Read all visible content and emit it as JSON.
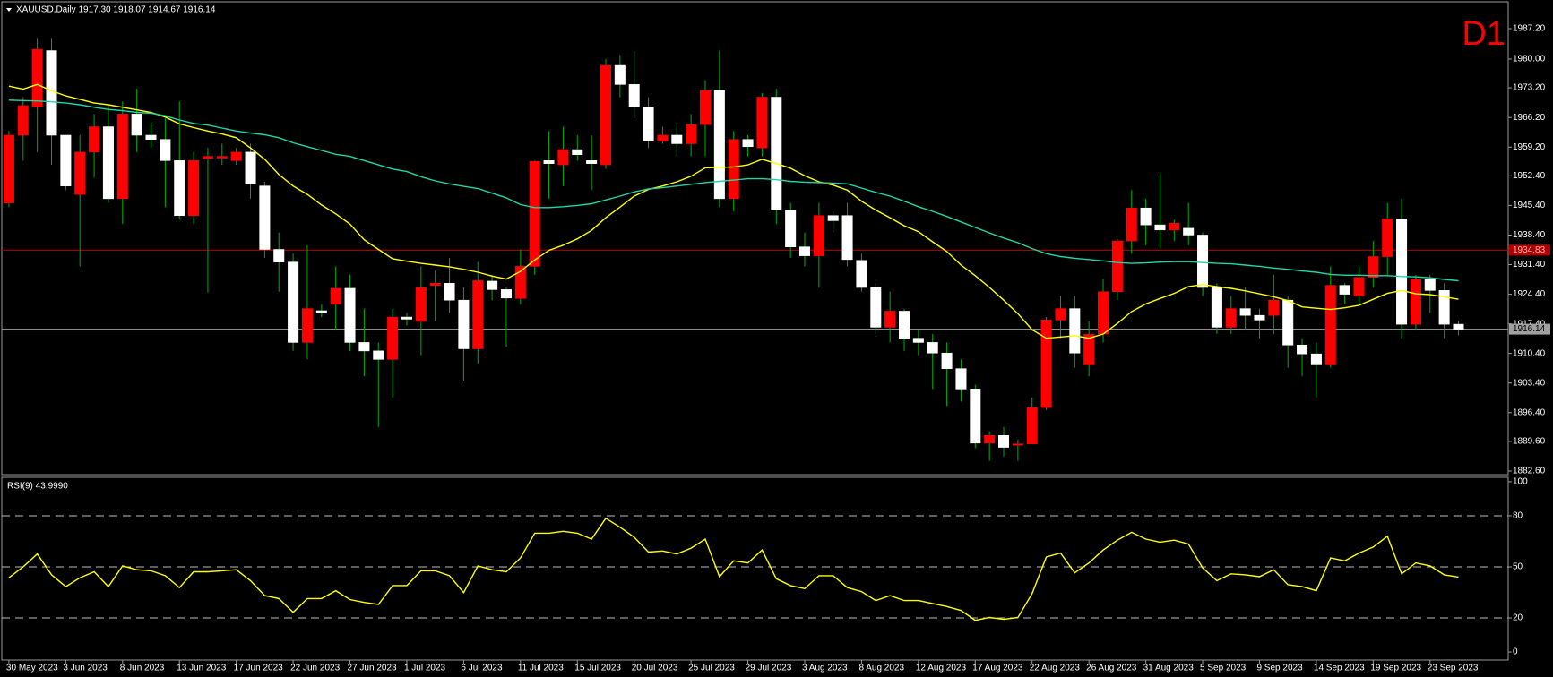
{
  "chart_data": [
    {
      "type": "candlestick",
      "title": "XAUUSD,Daily  1917.30 1918.07 1914.67 1916.14",
      "annotation": "D1",
      "categories": [
        "30 May 2023",
        null,
        null,
        null,
        "3 Jun 2023",
        null,
        null,
        null,
        "8 Jun 2023",
        null,
        null,
        null,
        "13 Jun 2023",
        null,
        null,
        null,
        "17 Jun 2023",
        null,
        null,
        null,
        "22 Jun 2023",
        null,
        null,
        null,
        "27 Jun 2023",
        null,
        null,
        null,
        "1 Jul 2023",
        null,
        null,
        null,
        "6 Jul 2023",
        null,
        null,
        null,
        "11 Jul 2023",
        null,
        null,
        null,
        "15 Jul 2023",
        null,
        null,
        null,
        "20 Jul 2023",
        null,
        null,
        null,
        "25 Jul 2023",
        null,
        null,
        null,
        "29 Jul 2023",
        null,
        null,
        null,
        "3 Aug 2023",
        null,
        null,
        null,
        "8 Aug 2023",
        null,
        null,
        null,
        "12 Aug 2023",
        null,
        null,
        null,
        "17 Aug 2023",
        null,
        null,
        null,
        "22 Aug 2023",
        null,
        null,
        null,
        "26 Aug 2023",
        null,
        null,
        null,
        "31 Aug 2023",
        null,
        null,
        null,
        "5 Sep 2023",
        null,
        null,
        null,
        "9 Sep 2023",
        null,
        null,
        null,
        "14 Sep 2023",
        null,
        null,
        null,
        "19 Sep 2023",
        null,
        null,
        null,
        "23 Sep 2023",
        null,
        null
      ],
      "open": [
        1946,
        1962,
        1968.7,
        1982,
        1962,
        1948,
        1958,
        1964,
        1947,
        1967,
        1962,
        1961,
        1956,
        1943,
        1956.5,
        1956.6,
        1956,
        1958,
        1950,
        1935,
        1932,
        1913,
        1920.5,
        1922,
        1925.8,
        1913,
        1911,
        1909,
        1919,
        1918,
        1926.5,
        1927,
        1923,
        1911.5,
        1927.5,
        1925.5,
        1923.4,
        1931,
        1956,
        1955,
        1958.6,
        1956,
        1955,
        1978.5,
        1974,
        1968.7,
        1960.6,
        1962,
        1960,
        1964.5,
        1972.6,
        1947,
        1961,
        1959,
        1971,
        1944.3,
        1935.6,
        1933.5,
        1943,
        1943,
        1932.4,
        1926,
        1916.6,
        1920.4,
        1914,
        1913,
        1910.5,
        1906.8,
        1902,
        1889.2,
        1891,
        1888.7,
        1889,
        1897.6,
        1918.3,
        1921,
        1907.7,
        1915,
        1925,
        1937,
        1944.8,
        1940.8,
        1939.6,
        1940,
        1938.4,
        1926,
        1916.6,
        1921,
        1919.4,
        1919.4,
        1923,
        1912.4,
        1910.3,
        1907.7,
        1926.5,
        1924,
        1928.4,
        1933.3,
        1942.2,
        1917.3,
        1927.9,
        1925.3,
        1917.3
      ],
      "high": [
        1963,
        1971,
        1985,
        1985,
        1962,
        1962,
        1967,
        1969,
        1970,
        1973,
        1965,
        1966,
        1970,
        1958,
        1959,
        1960,
        1959,
        1960,
        1951,
        1939,
        1934,
        1936,
        1922,
        1931,
        1929,
        1921,
        1913,
        1921,
        1920,
        1931,
        1930,
        1933,
        1926,
        1932,
        1929,
        1926,
        1935,
        1956,
        1963,
        1964,
        1962,
        1962,
        1980,
        1981,
        1982,
        1971,
        1964,
        1965,
        1967,
        1975,
        1982,
        1963,
        1962,
        1972,
        1973,
        1946,
        1939,
        1946,
        1944,
        1946,
        1934,
        1927,
        1925,
        1921,
        1916,
        1915,
        1913,
        1909,
        1903,
        1892,
        1893,
        1890,
        1900,
        1919,
        1924,
        1924,
        1918,
        1928,
        1937.5,
        1949,
        1947,
        1953,
        1942,
        1946,
        1939,
        1927,
        1924,
        1926,
        1921,
        1929,
        1924,
        1914,
        1913,
        1931,
        1927,
        1931,
        1937,
        1946,
        1947,
        1929,
        1929,
        1927,
        1918.07
      ],
      "low": [
        1945,
        1956,
        1958,
        1955,
        1949,
        1931,
        1952,
        1946,
        1941,
        1958,
        1959,
        1945,
        1942,
        1941,
        1924.8,
        1955,
        1955,
        1947,
        1933,
        1925,
        1911,
        1909,
        1919,
        1916,
        1911,
        1905,
        1893,
        1900,
        1917,
        1910,
        1918,
        1920,
        1904,
        1908,
        1923,
        1912,
        1922,
        1929,
        1947,
        1950,
        1956,
        1949,
        1954,
        1971,
        1966,
        1959,
        1960,
        1957,
        1957,
        1957,
        1945,
        1944,
        1957,
        1957,
        1941,
        1933,
        1931,
        1926,
        1939,
        1931,
        1925,
        1915,
        1913,
        1911,
        1910,
        1902,
        1898,
        1899,
        1888,
        1885,
        1886,
        1885,
        1889,
        1897,
        1914,
        1907,
        1905,
        1913,
        1923,
        1934,
        1936,
        1935,
        1937,
        1936,
        1924,
        1915,
        1915,
        1916,
        1914,
        1915,
        1907,
        1905,
        1900,
        1907,
        1922,
        1922,
        1926,
        1929,
        1914,
        1916,
        1920,
        1914,
        1914.67
      ],
      "close": [
        1962,
        1969,
        1982.3,
        1962,
        1950,
        1958,
        1964,
        1947,
        1967,
        1962,
        1961,
        1956,
        1943,
        1956,
        1957,
        1957,
        1958,
        1950.6,
        1935,
        1932,
        1913,
        1921,
        1920,
        1925.8,
        1913,
        1911,
        1909,
        1919,
        1918.5,
        1926,
        1927,
        1923,
        1911.5,
        1927.6,
        1925.5,
        1923.5,
        1931,
        1955.8,
        1955.3,
        1958.6,
        1957.4,
        1955.3,
        1978.5,
        1974,
        1968.7,
        1960.7,
        1962,
        1960,
        1964.5,
        1972.6,
        1947,
        1961,
        1959.3,
        1971,
        1944.3,
        1935.6,
        1933.5,
        1943,
        1941.8,
        1932.6,
        1926,
        1916.6,
        1920.4,
        1914,
        1913,
        1910.5,
        1906.8,
        1902,
        1889.2,
        1891,
        1888.2,
        1889,
        1897.6,
        1918.3,
        1921,
        1910.5,
        1914.9,
        1925,
        1937,
        1944.8,
        1940.8,
        1939.6,
        1941.2,
        1938.4,
        1926,
        1916.6,
        1921,
        1919.4,
        1918.3,
        1923,
        1912.4,
        1910.3,
        1907.7,
        1926.5,
        1924.4,
        1928.4,
        1933.3,
        1942.2,
        1917.3,
        1927.9,
        1925.3,
        1917.3,
        1916.14
      ],
      "up_color": "#ff0000",
      "down_color": "#ffffff",
      "wick_color": "#00b000",
      "overlays": [
        {
          "color": "#ffff00",
          "values": [
            1973.6,
            1972.9,
            1974,
            1972.5,
            1971.3,
            1970.5,
            1969.6,
            1969.2,
            1968.6,
            1968,
            1967.4,
            1966.3,
            1964.7,
            1963.8,
            1963,
            1962.3,
            1961.4,
            1959,
            1956.3,
            1952.7,
            1950,
            1948,
            1945.5,
            1943.4,
            1941,
            1937.3,
            1935,
            1932.8,
            1932.2,
            1931.7,
            1931.3,
            1930.9,
            1930.3,
            1929.6,
            1928.7,
            1928,
            1929.8,
            1932.5,
            1934.8,
            1936,
            1937.5,
            1939.5,
            1942.5,
            1945,
            1947.6,
            1949.2,
            1950,
            1951,
            1952.3,
            1954.3,
            1954.4,
            1954.5,
            1955,
            1956.3,
            1955.3,
            1954.2,
            1952.4,
            1951,
            1950.2,
            1949,
            1946.4,
            1944.3,
            1942.5,
            1940.6,
            1939.2,
            1936.8,
            1934.5,
            1931.3,
            1928.8,
            1926,
            1923,
            1919.8,
            1916,
            1914,
            1914.3,
            1914.6,
            1914,
            1915,
            1917.5,
            1920.3,
            1922.1,
            1923.4,
            1924.6,
            1926.2,
            1926.7,
            1926.2,
            1925.8,
            1925.2,
            1924.5,
            1923.8,
            1922.9,
            1921.4,
            1921.1,
            1920.8,
            1921.2,
            1921.8,
            1923.2,
            1924.6,
            1925.3,
            1924.5,
            1924.3,
            1923.8,
            1923.2
          ]
        },
        {
          "color": "#1fd6a8",
          "values": [
            1970.3,
            1970.2,
            1970.1,
            1969.9,
            1969.6,
            1969.2,
            1968.6,
            1968.1,
            1967.8,
            1967.4,
            1967.2,
            1966.6,
            1965.6,
            1964.8,
            1964.4,
            1963.7,
            1963,
            1962.5,
            1962.1,
            1961.4,
            1960.2,
            1959.3,
            1958.4,
            1957.5,
            1957,
            1956,
            1955,
            1954,
            1953.4,
            1952.2,
            1951.2,
            1950.5,
            1949.9,
            1949.4,
            1948.3,
            1947.2,
            1945.6,
            1944.9,
            1944.9,
            1945.1,
            1945.4,
            1945.8,
            1946.7,
            1947.6,
            1948.6,
            1949.3,
            1949.6,
            1950,
            1950.4,
            1950.8,
            1951.1,
            1951.4,
            1951.7,
            1951.7,
            1951.5,
            1951.1,
            1950.9,
            1950.8,
            1950.7,
            1950.5,
            1949.5,
            1948.5,
            1947.6,
            1946.4,
            1945.1,
            1944,
            1942.8,
            1941.5,
            1940.2,
            1938.9,
            1937.7,
            1936.6,
            1935.2,
            1934,
            1933.3,
            1932.9,
            1932.6,
            1932.3,
            1931.9,
            1931.7,
            1931.8,
            1932,
            1932.1,
            1932.1,
            1931.9,
            1931.7,
            1931.6,
            1931.3,
            1931,
            1930.6,
            1930.3,
            1929.9,
            1929.6,
            1929.1,
            1928.9,
            1928.9,
            1928.8,
            1928.8,
            1928.6,
            1928.5,
            1928.3,
            1927.9,
            1927.6
          ]
        }
      ],
      "hlines": [
        {
          "value": 1934.83,
          "label": "1934.83",
          "color": "#b00000"
        },
        {
          "value": 1916.14,
          "label": "1916.14",
          "color": "#a0a0a0"
        }
      ],
      "ylim": [
        1881.75,
        1993.55
      ],
      "yticks": [
        {
          "value": 1987.2,
          "label": "1987.20"
        },
        {
          "value": 1980,
          "label": "1980.00"
        },
        {
          "value": 1973.2,
          "label": "1973.20"
        },
        {
          "value": 1966.2,
          "label": "1966.20"
        },
        {
          "value": 1959.2,
          "label": "1959.20"
        },
        {
          "value": 1952.4,
          "label": "1952.40"
        },
        {
          "value": 1945.4,
          "label": "1945.40"
        },
        {
          "value": 1938.4,
          "label": "1938.40"
        },
        {
          "value": 1931.4,
          "label": "1931.40"
        },
        {
          "value": 1924.4,
          "label": "1924.40"
        },
        {
          "value": 1917.4,
          "label": "1917.40"
        },
        {
          "value": 1910.4,
          "label": "1910.40"
        },
        {
          "value": 1903.4,
          "label": "1903.40"
        },
        {
          "value": 1896.4,
          "label": "1896.40"
        },
        {
          "value": 1889.6,
          "label": "1889.60"
        },
        {
          "value": 1882.6,
          "label": "1882.60"
        }
      ]
    },
    {
      "type": "line",
      "title": "RSI(9) 43.9990",
      "color": "#ffff00",
      "values": [
        43.6,
        50,
        57.6,
        45.3,
        38.4,
        43.6,
        47.1,
        38.4,
        50.6,
        48.3,
        47.7,
        44.8,
        37.8,
        47.1,
        47.1,
        47.7,
        48.3,
        41.9,
        33.1,
        31.4,
        23.3,
        31.4,
        31.4,
        36,
        30.8,
        29.1,
        27.9,
        39,
        39,
        47.7,
        47.7,
        44.8,
        34.9,
        50.6,
        48.3,
        47.1,
        55.2,
        69.8,
        69.8,
        70.9,
        69.8,
        66.3,
        78.5,
        73.3,
        67.4,
        58.7,
        59.3,
        57.6,
        61,
        66.3,
        44.2,
        53.5,
        52.3,
        59.9,
        43,
        39,
        37.2,
        44.8,
        44.8,
        37.8,
        35.5,
        30.2,
        33.1,
        30.2,
        30.2,
        28.5,
        26.7,
        24.4,
        18.6,
        20.3,
        19.2,
        20.3,
        34.3,
        55.8,
        58.1,
        46.5,
        52.3,
        59.9,
        65.7,
        70.3,
        66.3,
        64.5,
        65.7,
        63.4,
        49.4,
        41.9,
        45.9,
        45.3,
        44.2,
        48.3,
        39.5,
        38.4,
        36,
        55.2,
        53.5,
        58.1,
        61.6,
        68,
        45.9,
        52.3,
        50.6,
        45.3,
        43.999
      ],
      "levels": [
        20,
        50,
        80
      ],
      "ylim": [
        -4.7,
        102.6
      ],
      "yticks": [
        0,
        20,
        50,
        80,
        100
      ]
    }
  ]
}
